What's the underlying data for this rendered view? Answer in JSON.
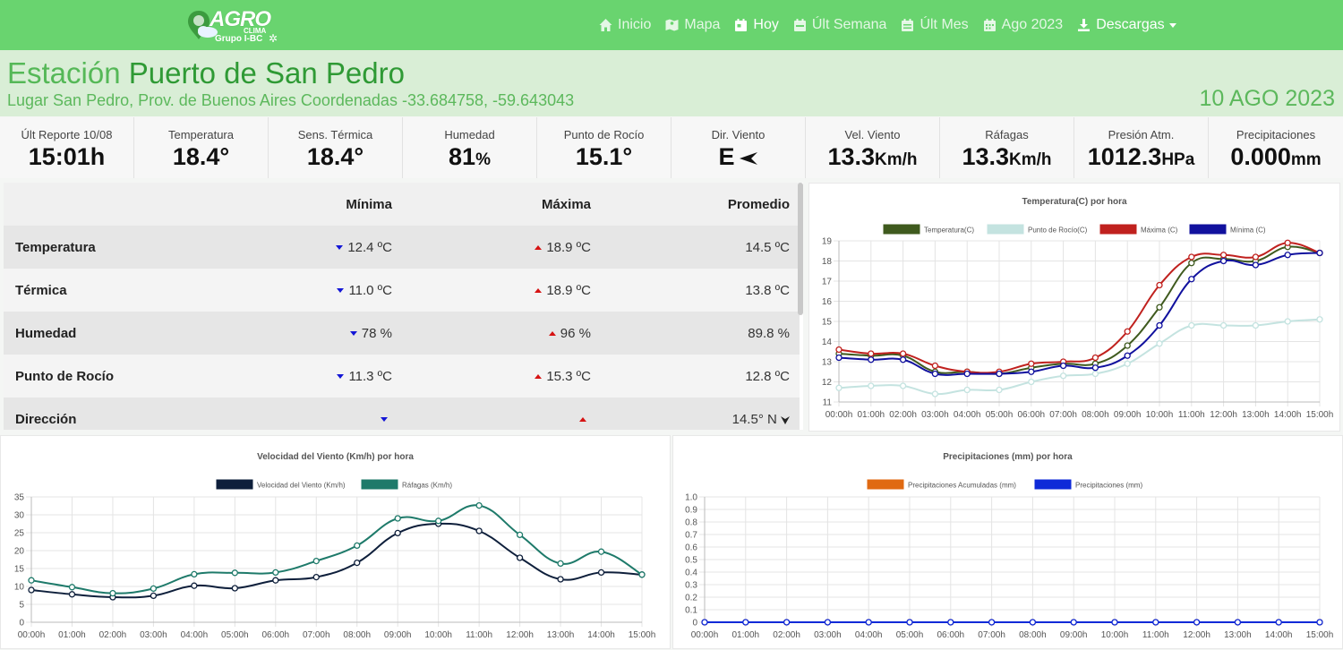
{
  "nav": {
    "logo_text": "AGRO",
    "logo_sub": "CLIMA",
    "logo_group": "Grupo I-BC",
    "items": [
      {
        "label": "Inicio",
        "icon": "home-icon"
      },
      {
        "label": "Mapa",
        "icon": "map-icon"
      },
      {
        "label": "Hoy",
        "icon": "calendar-day-icon"
      },
      {
        "label": "Últ Semana",
        "icon": "calendar-week-icon"
      },
      {
        "label": "Últ Mes",
        "icon": "calendar-month-icon"
      },
      {
        "label": "Ago 2023",
        "icon": "calendar-icon"
      },
      {
        "label": "Descargas",
        "icon": "download-icon"
      }
    ],
    "active": "Hoy"
  },
  "station": {
    "prefix": "Estación",
    "name": "Puerto de San Pedro",
    "subtitle": "Lugar San Pedro, Prov. de Buenos Aires Coordenadas -33.684758, -59.643043",
    "date": "10 AGO 2023"
  },
  "stats": [
    {
      "label": "Últ Reporte 10/08",
      "value": "15:01h",
      "unit": ""
    },
    {
      "label": "Temperatura",
      "value": "18.4°",
      "unit": ""
    },
    {
      "label": "Sens. Térmica",
      "value": "18.4°",
      "unit": ""
    },
    {
      "label": "Humedad",
      "value": "81",
      "unit": "%"
    },
    {
      "label": "Punto de Rocío",
      "value": "15.1°",
      "unit": ""
    },
    {
      "label": "Dir. Viento",
      "value": "E",
      "unit": ""
    },
    {
      "label": "Vel. Viento",
      "value": "13.3",
      "unit": "Km/h"
    },
    {
      "label": "Ráfagas",
      "value": "13.3",
      "unit": "Km/h"
    },
    {
      "label": "Presión Atm.",
      "value": "1012.3",
      "unit": "HPa"
    },
    {
      "label": "Precipitaciones",
      "value": "0.000",
      "unit": "mm"
    }
  ],
  "summary_table": {
    "headers": [
      "",
      "Mínima",
      "Máxima",
      "Promedio"
    ],
    "rows": [
      {
        "label": "Temperatura",
        "min": "12.4 ºC",
        "max": "18.9 ºC",
        "avg": "14.5 ºC"
      },
      {
        "label": "Térmica",
        "min": "11.0 ºC",
        "max": "18.9 ºC",
        "avg": "13.8 ºC"
      },
      {
        "label": "Humedad",
        "min": "78 %",
        "max": "96 %",
        "avg": "89.8 %"
      },
      {
        "label": "Punto de Rocío",
        "min": "11.3 ºC",
        "max": "15.3 ºC",
        "avg": "12.8 ºC"
      },
      {
        "label": "Dirección",
        "min": "",
        "max": "",
        "avg": "14.5° N"
      }
    ]
  },
  "colors": {
    "temperatura": "#3f5a1e",
    "rocio": "#c4e3e0",
    "maxima": "#c0211e",
    "minima": "#11119e",
    "viento": "#0e1f3b",
    "rafagas": "#1e7a6a",
    "precip_acum": "#e06a12",
    "precip": "#0e2ad8"
  },
  "chart_data": [
    {
      "type": "line",
      "title": "Temperatura(C) por hora",
      "x": [
        "00:00h",
        "01:00h",
        "02:00h",
        "03:00h",
        "04:00h",
        "05:00h",
        "06:00h",
        "07:00h",
        "08:00h",
        "09:00h",
        "10:00h",
        "11:00h",
        "12:00h",
        "13:00h",
        "14:00h",
        "15:00h"
      ],
      "ylim": [
        11,
        19
      ],
      "yticks": [
        11,
        12,
        13,
        14,
        15,
        16,
        17,
        18,
        19
      ],
      "legend_position": "top",
      "grid": true,
      "series": [
        {
          "name": "Temperatura(C)",
          "color_key": "temperatura",
          "values": [
            13.4,
            13.3,
            13.3,
            12.5,
            12.5,
            12.4,
            12.7,
            12.9,
            12.9,
            13.8,
            15.7,
            17.9,
            18.1,
            18.0,
            18.7,
            18.4
          ]
        },
        {
          "name": "Punto de Rocío(C)",
          "color_key": "rocio",
          "values": [
            11.7,
            11.8,
            11.8,
            11.4,
            11.6,
            11.6,
            12.0,
            12.3,
            12.4,
            12.9,
            13.9,
            14.8,
            14.8,
            14.8,
            15.0,
            15.1
          ]
        },
        {
          "name": "Máxima (C)",
          "color_key": "maxima",
          "values": [
            13.6,
            13.4,
            13.4,
            12.8,
            12.5,
            12.5,
            12.9,
            13.0,
            13.2,
            14.5,
            16.8,
            18.2,
            18.3,
            18.2,
            18.9,
            18.4
          ]
        },
        {
          "name": "Mínima (C)",
          "color_key": "minima",
          "values": [
            13.2,
            13.1,
            13.1,
            12.4,
            12.4,
            12.4,
            12.5,
            12.8,
            12.7,
            13.3,
            14.8,
            17.1,
            18.0,
            17.8,
            18.3,
            18.4
          ]
        }
      ]
    },
    {
      "type": "line",
      "title": "Velocidad del Viento (Km/h) por hora",
      "x": [
        "00:00h",
        "01:00h",
        "02:00h",
        "03:00h",
        "04:00h",
        "05:00h",
        "06:00h",
        "07:00h",
        "08:00h",
        "09:00h",
        "10:00h",
        "11:00h",
        "12:00h",
        "13:00h",
        "14:00h",
        "15:00h"
      ],
      "ylim": [
        0,
        35
      ],
      "yticks": [
        0,
        5,
        10,
        15,
        20,
        25,
        30,
        35
      ],
      "legend_position": "top",
      "grid": true,
      "series": [
        {
          "name": "Velocidad del Viento (Km/h)",
          "color_key": "viento",
          "values": [
            9.0,
            7.8,
            7.0,
            7.4,
            10.2,
            9.5,
            11.7,
            12.6,
            16.6,
            24.9,
            27.5,
            25.5,
            18.0,
            12.0,
            13.9,
            13.3
          ]
        },
        {
          "name": "Ráfagas (Km/h)",
          "color_key": "rafagas",
          "values": [
            11.7,
            9.8,
            8.1,
            9.4,
            13.4,
            13.8,
            13.9,
            17.1,
            21.4,
            29.0,
            28.3,
            32.6,
            24.4,
            16.4,
            19.7,
            13.3
          ]
        }
      ]
    },
    {
      "type": "line",
      "title": "Precipitaciones (mm) por hora",
      "x": [
        "00:00h",
        "01:00h",
        "02:00h",
        "03:00h",
        "04:00h",
        "05:00h",
        "06:00h",
        "07:00h",
        "08:00h",
        "09:00h",
        "10:00h",
        "11:00h",
        "12:00h",
        "13:00h",
        "14:00h",
        "15:00h"
      ],
      "ylim": [
        0,
        1.0
      ],
      "yticks": [
        0,
        0.1,
        0.2,
        0.3,
        0.4,
        0.5,
        0.6,
        0.7,
        0.8,
        0.9,
        1.0
      ],
      "legend_position": "top",
      "grid": true,
      "series": [
        {
          "name": "Precipitaciones Acumuladas (mm)",
          "color_key": "precip_acum",
          "values": [
            0,
            0,
            0,
            0,
            0,
            0,
            0,
            0,
            0,
            0,
            0,
            0,
            0,
            0,
            0,
            0
          ]
        },
        {
          "name": "Precipitaciones (mm)",
          "color_key": "precip",
          "values": [
            0,
            0,
            0,
            0,
            0,
            0,
            0,
            0,
            0,
            0,
            0,
            0,
            0,
            0,
            0,
            0
          ]
        }
      ]
    }
  ]
}
